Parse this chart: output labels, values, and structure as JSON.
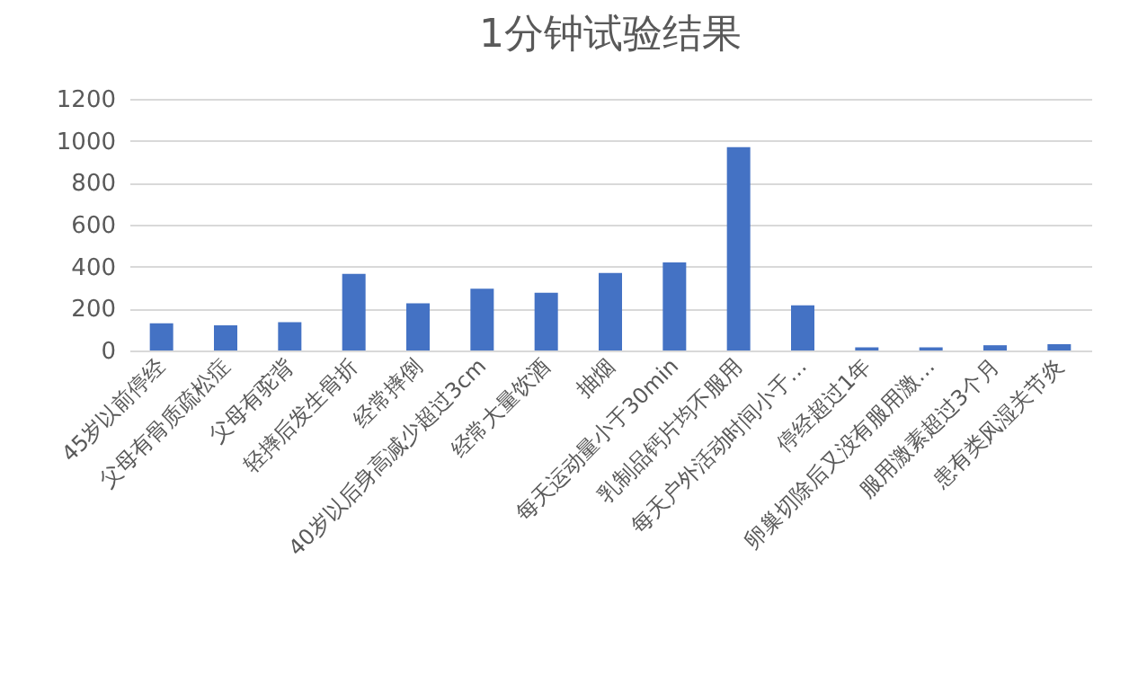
{
  "chart_data": {
    "type": "bar",
    "title": "1分钟试验结果",
    "categories": [
      "45岁以前停经",
      "父母有骨质疏松症",
      "父母有驼背",
      "轻摔后发生骨折",
      "经常摔倒",
      "40岁以后身高减少超过3cm",
      "经常大量饮酒",
      "抽烟",
      "每天运动量小于30min",
      "乳制品钙片均不服用",
      "每天户外活动时间小于…",
      "停经超过1年",
      "卵巢切除后又没有服用激…",
      "服用激素超过3个月",
      "患有类风湿关节炎"
    ],
    "values": [
      130,
      120,
      135,
      365,
      225,
      295,
      275,
      370,
      420,
      970,
      215,
      15,
      15,
      25,
      30
    ],
    "color": "#4472c4",
    "ylim": [
      0,
      1200
    ],
    "yticks": [
      0,
      200,
      400,
      600,
      800,
      1000,
      1200
    ],
    "grid": "y"
  }
}
